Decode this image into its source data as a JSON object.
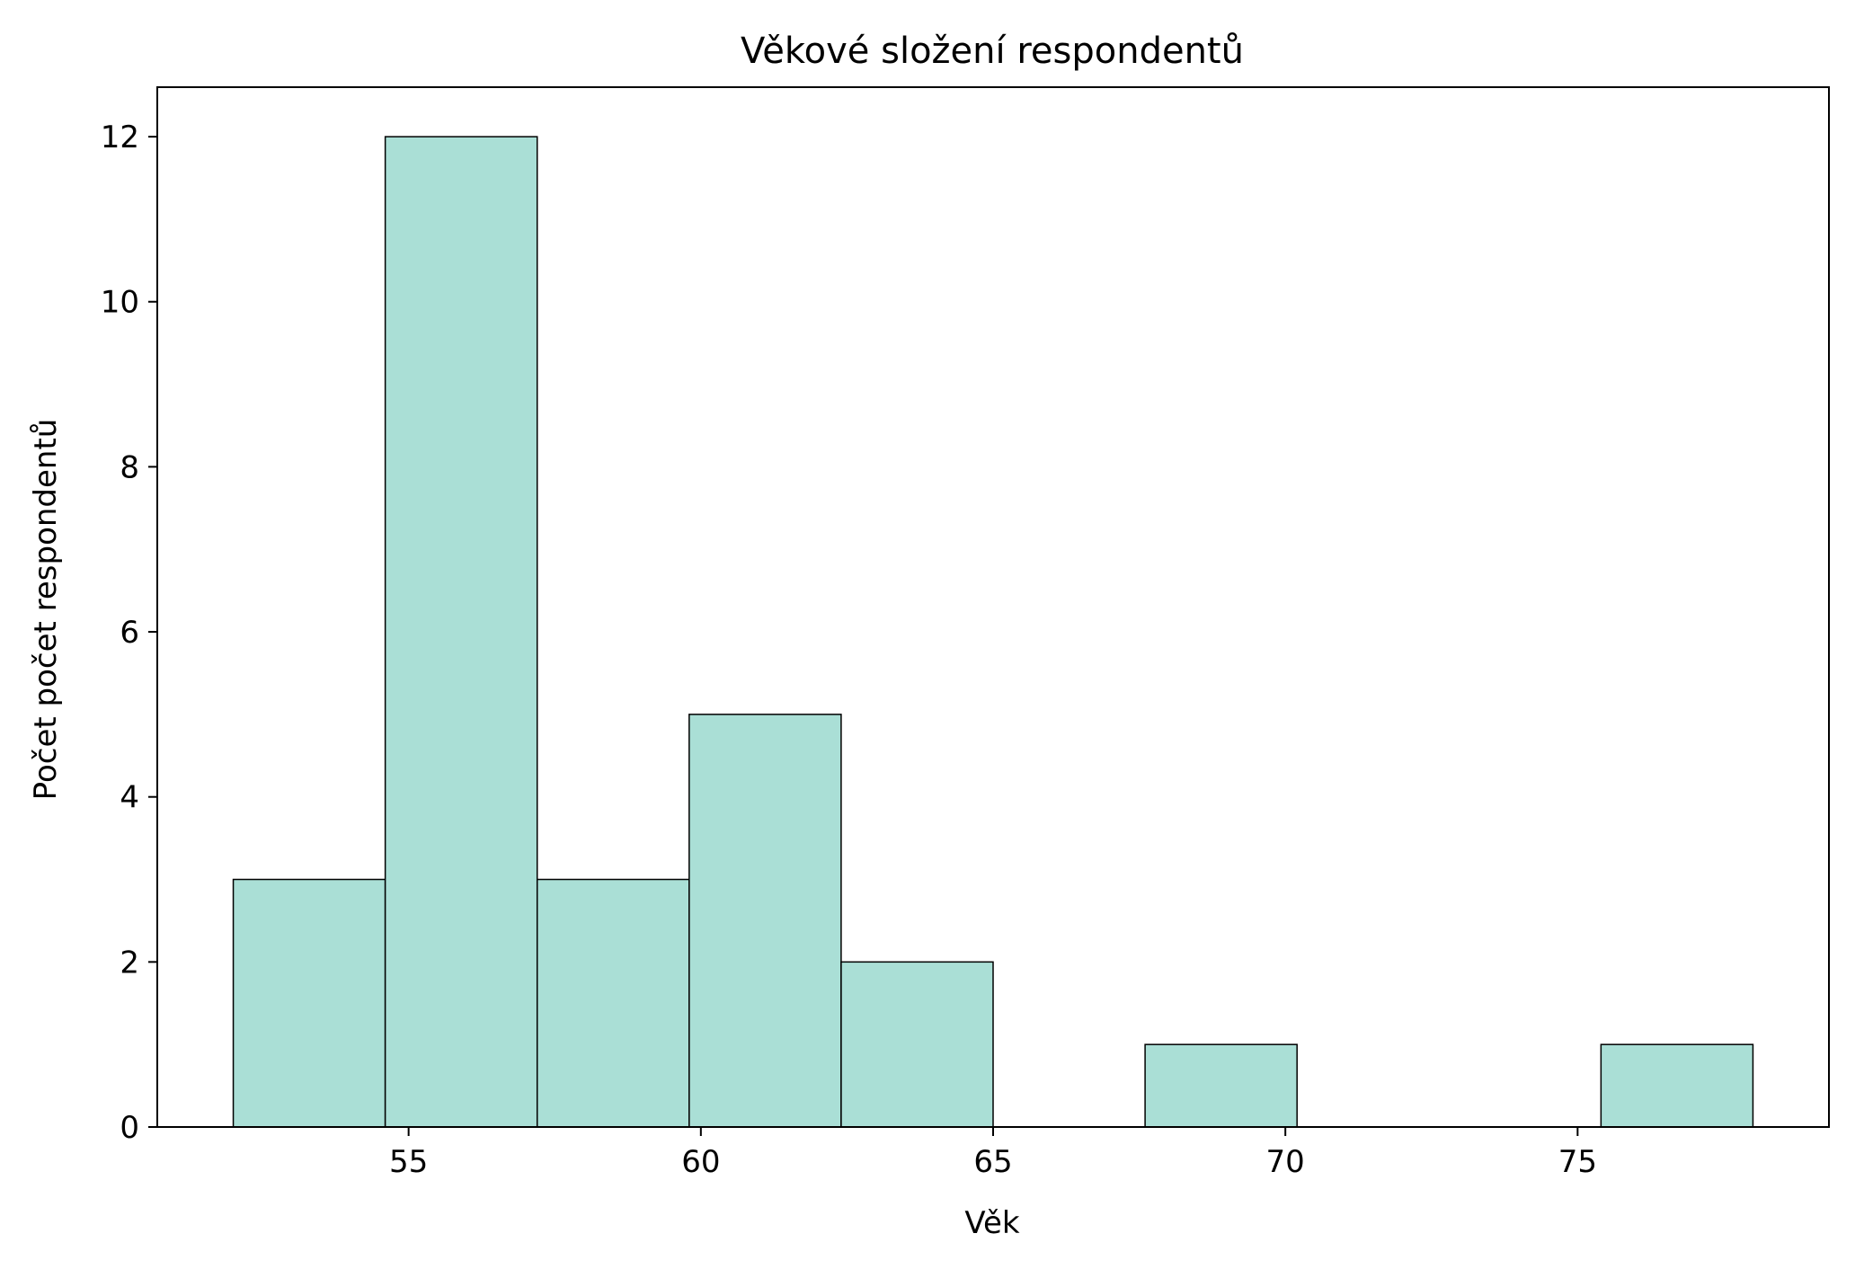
{
  "chart_data": {
    "type": "bar",
    "subtype": "histogram",
    "title": "Věkové složení respondentů",
    "xlabel": "Věk",
    "ylabel": "Počet počet respondentů",
    "xlim": [
      50.7,
      79.3
    ],
    "ylim": [
      0,
      12.6
    ],
    "xticks": [
      55,
      60,
      65,
      70,
      75
    ],
    "yticks": [
      0,
      2,
      4,
      6,
      8,
      10,
      12
    ],
    "bins": [
      {
        "start": 52.0,
        "end": 54.6,
        "count": 3
      },
      {
        "start": 54.6,
        "end": 57.2,
        "count": 12
      },
      {
        "start": 57.2,
        "end": 59.8,
        "count": 3
      },
      {
        "start": 59.8,
        "end": 62.4,
        "count": 5
      },
      {
        "start": 62.4,
        "end": 65.0,
        "count": 2
      },
      {
        "start": 65.0,
        "end": 67.6,
        "count": 0
      },
      {
        "start": 67.6,
        "end": 70.2,
        "count": 1
      },
      {
        "start": 70.2,
        "end": 72.8,
        "count": 0
      },
      {
        "start": 72.8,
        "end": 75.4,
        "count": 0
      },
      {
        "start": 75.4,
        "end": 78.0,
        "count": 1
      }
    ],
    "colors": {
      "bar_fill": "#aadfd6",
      "bar_edge": "#000000",
      "axis": "#000000",
      "text": "#000000"
    }
  }
}
